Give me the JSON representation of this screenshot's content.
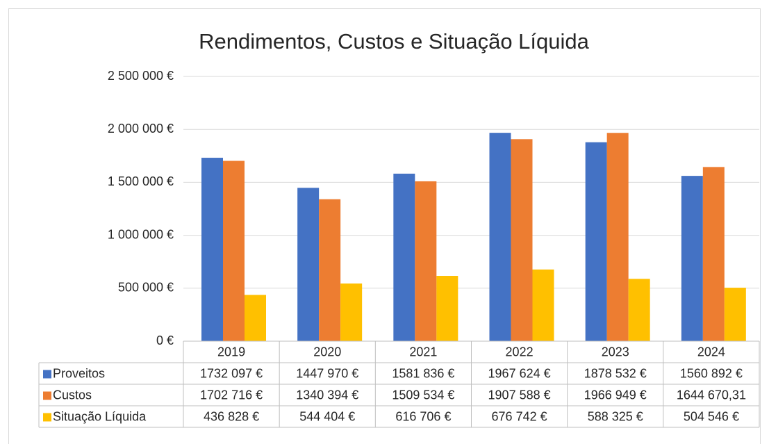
{
  "chart_data": {
    "type": "bar",
    "title": "Rendimentos, Custos e Situação Líquida",
    "categories": [
      "2019",
      "2020",
      "2021",
      "2022",
      "2023",
      "2024"
    ],
    "series": [
      {
        "name": "Proveitos",
        "color": "#4472c4",
        "values": [
          1732097,
          1447970,
          1581836,
          1967624,
          1878532,
          1560892
        ],
        "value_labels": [
          "1732 097 €",
          "1447 970 €",
          "1581 836 €",
          "1967 624 €",
          "1878 532 €",
          "1560 892 €"
        ]
      },
      {
        "name": "Custos",
        "color": "#ed7d31",
        "values": [
          1702716,
          1340394,
          1509534,
          1907588,
          1966949,
          1644670.31
        ],
        "value_labels": [
          "1702 716 €",
          "1340 394 €",
          "1509 534 €",
          "1907 588 €",
          "1966 949 €",
          "1644 670,31"
        ]
      },
      {
        "name": "Situação Líquida",
        "color": "#ffc000",
        "values": [
          436828,
          544404,
          616706,
          676742,
          588325,
          504546
        ],
        "value_labels": [
          "436 828 €",
          "544 404 €",
          "616 706 €",
          "676 742 €",
          "588 325 €",
          "504 546 €"
        ]
      }
    ],
    "ylim": [
      0,
      2500000
    ],
    "yticks": [
      {
        "value": 0,
        "label": "0 €"
      },
      {
        "value": 500000,
        "label": "500 000 €"
      },
      {
        "value": 1000000,
        "label": "1 000 000 €"
      },
      {
        "value": 1500000,
        "label": "1 500 000 €"
      },
      {
        "value": 2000000,
        "label": "2 000 000 €"
      },
      {
        "value": 2500000,
        "label": "2 500 000 €"
      }
    ],
    "grid": true
  }
}
